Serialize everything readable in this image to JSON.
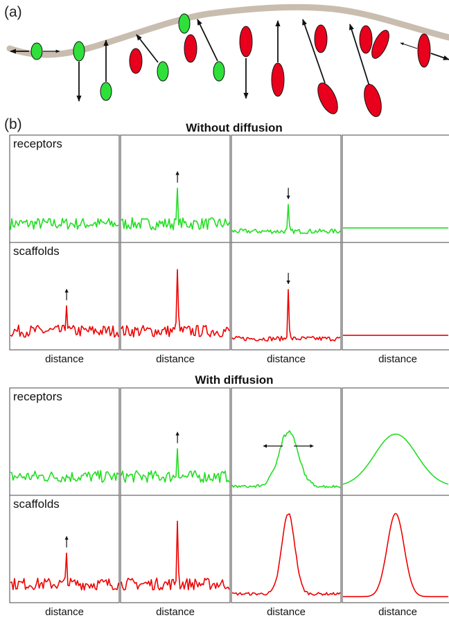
{
  "panel_a": {
    "label": "(a)",
    "receptor_color": "#2fe03a",
    "scaffold_color": "#e8001c",
    "membrane_color": "#c9bdb0"
  },
  "panel_b": {
    "label": "(b)",
    "sections": [
      {
        "title": "Without diffusion",
        "rows": [
          {
            "label": "receptors",
            "color": "#22dd22",
            "plots": [
              {
                "shape": "noise",
                "arrow": "none"
              },
              {
                "shape": "spike-noise",
                "arrow": "up"
              },
              {
                "shape": "spike-small-noise",
                "arrow": "down"
              },
              {
                "shape": "flat",
                "arrow": "none"
              }
            ]
          },
          {
            "label": "scaffolds",
            "color": "#ee0000",
            "plots": [
              {
                "shape": "spike-noise",
                "arrow": "up"
              },
              {
                "shape": "tall-spike-noise",
                "arrow": "none"
              },
              {
                "shape": "tall-spike-small-noise",
                "arrow": "down"
              },
              {
                "shape": "flat",
                "arrow": "none"
              }
            ]
          }
        ],
        "xlabels": [
          "distance",
          "distance",
          "distance",
          "distance"
        ]
      },
      {
        "title": "With diffusion",
        "rows": [
          {
            "label": "receptors",
            "color": "#22dd22",
            "plots": [
              {
                "shape": "noise",
                "arrow": "none"
              },
              {
                "shape": "spike-noise",
                "arrow": "up"
              },
              {
                "shape": "broad-noisy",
                "arrow": "both"
              },
              {
                "shape": "gaussian-wide",
                "arrow": "none"
              }
            ]
          },
          {
            "label": "scaffolds",
            "color": "#ee0000",
            "plots": [
              {
                "shape": "spike-noise",
                "arrow": "up"
              },
              {
                "shape": "tall-spike-noise",
                "arrow": "none"
              },
              {
                "shape": "narrow-peak-noise",
                "arrow": "none"
              },
              {
                "shape": "gaussian-narrow",
                "arrow": "none"
              }
            ]
          }
        ],
        "xlabels": [
          "distance",
          "distance",
          "distance",
          "distance"
        ]
      }
    ]
  }
}
